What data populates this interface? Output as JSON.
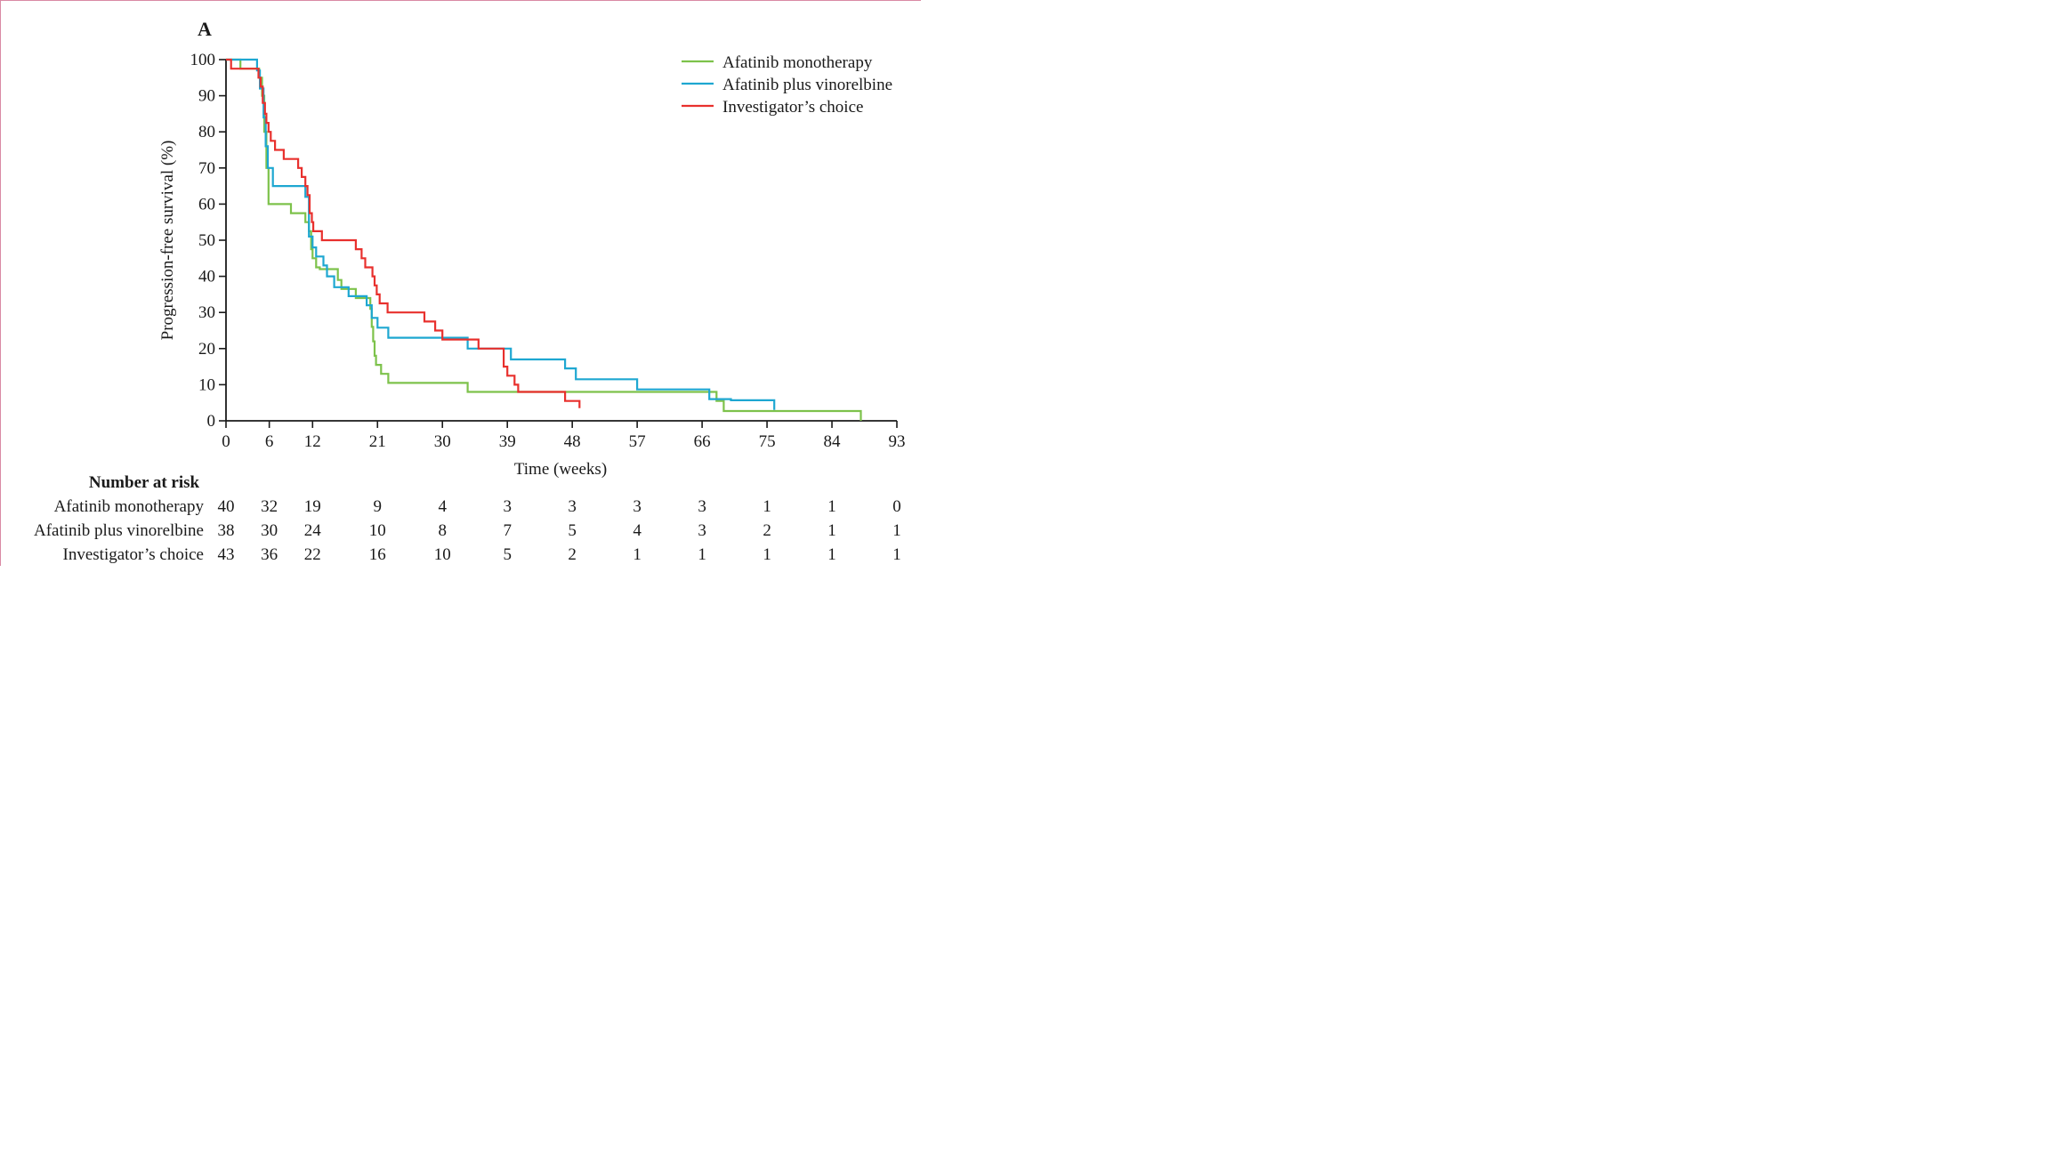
{
  "colors": {
    "monotherapy": "#7dc24b",
    "vinorelbine": "#1ea7d1",
    "investigator": "#e8302d",
    "axis": "#1a1a1a",
    "frame": "#d98aa4"
  },
  "panel_label": "A",
  "risk_table": {
    "title": "Number at risk",
    "rows": [
      {
        "label": "Afatinib monotherapy",
        "values": [
          "40",
          "32",
          "19",
          "9",
          "4",
          "3",
          "3",
          "3",
          "3",
          "1",
          "1",
          "0"
        ]
      },
      {
        "label": "Afatinib plus vinorelbine",
        "values": [
          "38",
          "30",
          "24",
          "10",
          "8",
          "7",
          "5",
          "4",
          "3",
          "2",
          "1",
          "1"
        ]
      },
      {
        "label": "Investigator’s choice",
        "values": [
          "43",
          "36",
          "22",
          "16",
          "10",
          "5",
          "2",
          "1",
          "1",
          "1",
          "1",
          "1"
        ]
      }
    ]
  },
  "chart_data": {
    "type": "line",
    "step": true,
    "title": "",
    "xlabel": "Time (weeks)",
    "ylabel": "Progression-free survival (%)",
    "xlim": [
      0,
      93
    ],
    "ylim": [
      0,
      100
    ],
    "xticks": [
      0,
      6,
      12,
      21,
      30,
      39,
      48,
      57,
      66,
      75,
      84,
      93
    ],
    "yticks": [
      0,
      10,
      20,
      30,
      40,
      50,
      60,
      70,
      80,
      90,
      100
    ],
    "grid": false,
    "legend_position": "top-right",
    "series": [
      {
        "name": "Afatinib monotherapy",
        "color_key": "monotherapy",
        "points": [
          [
            0,
            100
          ],
          [
            2,
            100
          ],
          [
            2,
            97.5
          ],
          [
            4.6,
            97.5
          ],
          [
            4.6,
            95
          ],
          [
            5,
            95
          ],
          [
            5,
            90
          ],
          [
            5.3,
            90
          ],
          [
            5.3,
            80
          ],
          [
            5.6,
            80
          ],
          [
            5.6,
            70
          ],
          [
            5.9,
            70
          ],
          [
            5.9,
            60
          ],
          [
            9,
            60
          ],
          [
            9,
            57.5
          ],
          [
            11,
            57.5
          ],
          [
            11,
            55
          ],
          [
            11.5,
            55
          ],
          [
            11.5,
            52.5
          ],
          [
            11.8,
            52.5
          ],
          [
            11.8,
            47.5
          ],
          [
            12,
            47.5
          ],
          [
            12,
            45
          ],
          [
            12.5,
            45
          ],
          [
            12.5,
            42.5
          ],
          [
            13,
            42.5
          ],
          [
            13,
            42
          ],
          [
            15.5,
            42
          ],
          [
            15.5,
            39
          ],
          [
            16,
            39
          ],
          [
            16,
            36.5
          ],
          [
            18,
            36.5
          ],
          [
            18,
            34
          ],
          [
            20,
            34
          ],
          [
            20,
            31
          ],
          [
            20.2,
            31
          ],
          [
            20.2,
            26
          ],
          [
            20.4,
            26
          ],
          [
            20.4,
            22
          ],
          [
            20.6,
            22
          ],
          [
            20.6,
            18
          ],
          [
            20.8,
            18
          ],
          [
            20.8,
            15.5
          ],
          [
            21.5,
            15.5
          ],
          [
            21.5,
            13
          ],
          [
            22.5,
            13
          ],
          [
            22.5,
            10.5
          ],
          [
            33.5,
            10.5
          ],
          [
            33.5,
            8
          ],
          [
            68,
            8
          ],
          [
            68,
            5.5
          ],
          [
            69,
            5.5
          ],
          [
            69,
            2.7
          ],
          [
            88,
            2.7
          ],
          [
            88,
            0
          ]
        ]
      },
      {
        "name": "Afatinib plus vinorelbine",
        "color_key": "vinorelbine",
        "points": [
          [
            0,
            100
          ],
          [
            4.3,
            100
          ],
          [
            4.3,
            97
          ],
          [
            4.7,
            97
          ],
          [
            4.7,
            92
          ],
          [
            5.2,
            92
          ],
          [
            5.2,
            84
          ],
          [
            5.5,
            84
          ],
          [
            5.5,
            76
          ],
          [
            5.8,
            76
          ],
          [
            5.8,
            70
          ],
          [
            6.5,
            70
          ],
          [
            6.5,
            65
          ],
          [
            11,
            65
          ],
          [
            11,
            62
          ],
          [
            11.5,
            62
          ],
          [
            11.5,
            51
          ],
          [
            12,
            51
          ],
          [
            12,
            48
          ],
          [
            12.5,
            48
          ],
          [
            12.5,
            45.5
          ],
          [
            13.5,
            45.5
          ],
          [
            13.5,
            43
          ],
          [
            14,
            43
          ],
          [
            14,
            40
          ],
          [
            15,
            40
          ],
          [
            15,
            37
          ],
          [
            17,
            37
          ],
          [
            17,
            34.5
          ],
          [
            19.5,
            34.5
          ],
          [
            19.5,
            32
          ],
          [
            20.2,
            32
          ],
          [
            20.2,
            28.5
          ],
          [
            21,
            28.5
          ],
          [
            21,
            25.8
          ],
          [
            22.5,
            25.8
          ],
          [
            22.5,
            23
          ],
          [
            33.5,
            23
          ],
          [
            33.5,
            20
          ],
          [
            39.5,
            20
          ],
          [
            39.5,
            17
          ],
          [
            47,
            17
          ],
          [
            47,
            14.5
          ],
          [
            48.5,
            14.5
          ],
          [
            48.5,
            11.5
          ],
          [
            57,
            11.5
          ],
          [
            57,
            8.7
          ],
          [
            67,
            8.7
          ],
          [
            67,
            6
          ],
          [
            70,
            6
          ],
          [
            70,
            5.7
          ],
          [
            76,
            5.7
          ],
          [
            76,
            3
          ]
        ]
      },
      {
        "name": "Investigator’s choice",
        "color_key": "investigator",
        "points": [
          [
            0,
            100
          ],
          [
            0.7,
            100
          ],
          [
            0.7,
            97.5
          ],
          [
            4.5,
            97.5
          ],
          [
            4.5,
            95
          ],
          [
            4.8,
            95
          ],
          [
            4.8,
            92.5
          ],
          [
            5.1,
            92.5
          ],
          [
            5.1,
            88
          ],
          [
            5.4,
            88
          ],
          [
            5.4,
            85
          ],
          [
            5.6,
            85
          ],
          [
            5.6,
            82.5
          ],
          [
            5.9,
            82.5
          ],
          [
            5.9,
            80
          ],
          [
            6.2,
            80
          ],
          [
            6.2,
            77.5
          ],
          [
            6.8,
            77.5
          ],
          [
            6.8,
            75
          ],
          [
            8,
            75
          ],
          [
            8,
            72.5
          ],
          [
            10,
            72.5
          ],
          [
            10,
            70
          ],
          [
            10.5,
            70
          ],
          [
            10.5,
            67.5
          ],
          [
            11,
            67.5
          ],
          [
            11,
            65
          ],
          [
            11.3,
            65
          ],
          [
            11.3,
            62.5
          ],
          [
            11.6,
            62.5
          ],
          [
            11.6,
            57.5
          ],
          [
            11.9,
            57.5
          ],
          [
            11.9,
            55
          ],
          [
            12.1,
            55
          ],
          [
            12.1,
            52.5
          ],
          [
            13.3,
            52.5
          ],
          [
            13.3,
            50
          ],
          [
            18,
            50
          ],
          [
            18,
            47.5
          ],
          [
            18.8,
            47.5
          ],
          [
            18.8,
            45
          ],
          [
            19.3,
            45
          ],
          [
            19.3,
            42.5
          ],
          [
            20.3,
            42.5
          ],
          [
            20.3,
            40
          ],
          [
            20.6,
            40
          ],
          [
            20.6,
            37.5
          ],
          [
            20.9,
            37.5
          ],
          [
            20.9,
            35
          ],
          [
            21.3,
            35
          ],
          [
            21.3,
            32.5
          ],
          [
            22.4,
            32.5
          ],
          [
            22.4,
            30
          ],
          [
            27.5,
            30
          ],
          [
            27.5,
            27.5
          ],
          [
            29,
            27.5
          ],
          [
            29,
            25
          ],
          [
            30,
            25
          ],
          [
            30,
            22.5
          ],
          [
            35,
            22.5
          ],
          [
            35,
            20
          ],
          [
            38.5,
            20
          ],
          [
            38.5,
            15
          ],
          [
            39,
            15
          ],
          [
            39,
            12.5
          ],
          [
            40,
            12.5
          ],
          [
            40,
            10
          ],
          [
            40.5,
            10
          ],
          [
            40.5,
            8
          ],
          [
            47,
            8
          ],
          [
            47,
            5.5
          ],
          [
            49,
            5.5
          ],
          [
            49,
            3.5
          ]
        ]
      }
    ],
    "risk_table": {
      "title": "Number at risk",
      "times": [
        0,
        6,
        12,
        21,
        30,
        39,
        48,
        57,
        66,
        75,
        84,
        93
      ],
      "rows": [
        {
          "name": "Afatinib monotherapy",
          "values": [
            40,
            32,
            19,
            9,
            4,
            3,
            3,
            3,
            3,
            1,
            1,
            0
          ]
        },
        {
          "name": "Afatinib plus vinorelbine",
          "values": [
            38,
            30,
            24,
            10,
            8,
            7,
            5,
            4,
            3,
            2,
            1,
            1
          ]
        },
        {
          "name": "Investigator’s choice",
          "values": [
            43,
            36,
            22,
            16,
            10,
            5,
            2,
            1,
            1,
            1,
            1,
            1
          ]
        }
      ]
    }
  }
}
